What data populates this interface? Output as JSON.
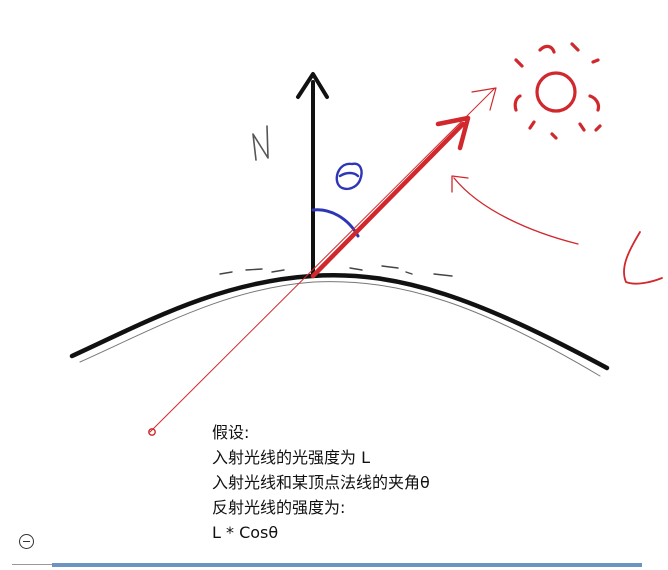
{
  "diagram": {
    "normal_label": "N",
    "angle_label": "θ",
    "light_label": "L",
    "colors": {
      "ink": "#111111",
      "red": "#d0282c",
      "blue": "#2d37b5"
    }
  },
  "notes": {
    "lines": [
      "假设:",
      "入射光线的光强度为 L",
      "入射光线和某顶点法线的夹角θ",
      "反射光线的强度为:",
      "L * Cosθ"
    ]
  },
  "controls": {
    "progress_fraction": 1.0
  }
}
